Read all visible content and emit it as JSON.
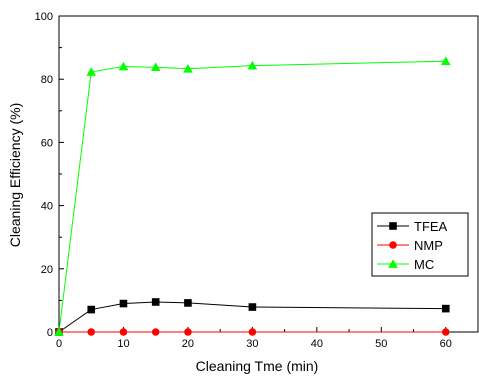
{
  "chart_data": {
    "type": "line",
    "title": "",
    "xlabel": "Cleaning Tme (min)",
    "ylabel": "Cleaning Efficiency (%)",
    "xlim": [
      0,
      65
    ],
    "ylim": [
      0,
      100
    ],
    "x_ticks": [
      0,
      10,
      20,
      30,
      40,
      50,
      60
    ],
    "y_ticks": [
      0,
      20,
      40,
      60,
      80,
      100
    ],
    "legend_position": "inside lower-right",
    "series": [
      {
        "name": "TFEA",
        "color": "#000000",
        "marker": "square",
        "x": [
          0,
          5,
          10,
          15,
          20,
          30,
          60
        ],
        "y": [
          0,
          7.1,
          9.0,
          9.5,
          9.2,
          7.9,
          7.4
        ]
      },
      {
        "name": "NMP",
        "color": "#ff0000",
        "marker": "circle",
        "x": [
          0,
          5,
          10,
          15,
          20,
          30,
          60
        ],
        "y": [
          0,
          0,
          0,
          0,
          0,
          0,
          0
        ]
      },
      {
        "name": "MC",
        "color": "#00ff00",
        "marker": "triangle",
        "x": [
          0,
          5,
          10,
          15,
          20,
          30,
          60
        ],
        "y": [
          0,
          82.3,
          84.0,
          83.8,
          83.3,
          84.3,
          85.7
        ]
      }
    ]
  }
}
